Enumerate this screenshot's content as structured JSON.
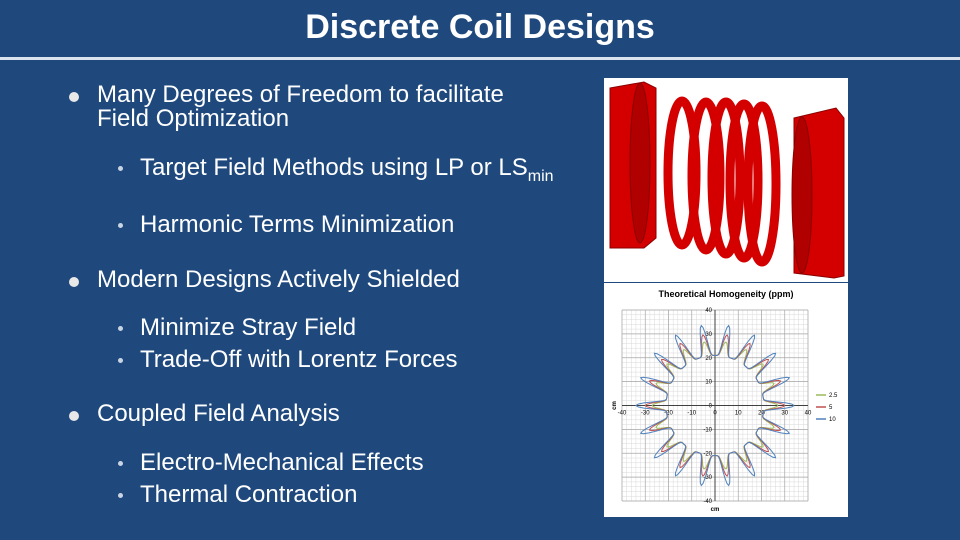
{
  "slide": {
    "title": "Discrete Coil Designs",
    "bullets": [
      {
        "text": "Many Degrees of Freedom to facilitate Field Optimization",
        "sub": [
          {
            "text": "Target Field Methods using LP or LS",
            "subscript": "min"
          },
          {
            "text": "Harmonic Terms Minimization"
          }
        ]
      },
      {
        "text": "Modern Designs Actively Shielded",
        "sub": [
          {
            "text": "Minimize Stray Field"
          },
          {
            "text": "Trade-Off with Lorentz Forces"
          }
        ]
      },
      {
        "text": "Coupled Field Analysis",
        "sub": [
          {
            "text": "Electro-Mechanical Effects"
          },
          {
            "text": "Thermal Contraction"
          }
        ]
      }
    ]
  },
  "figure": {
    "title": "Theoretical Homogeneity (ppm)",
    "xlabel": "cm",
    "ylabel": "cm",
    "xlim": [
      -40,
      40
    ],
    "ylim": [
      -40,
      40
    ],
    "xticks": [
      -40,
      -30,
      -20,
      -10,
      0,
      10,
      20,
      30,
      40
    ],
    "yticks": [
      -40,
      -30,
      -20,
      -10,
      0,
      10,
      20,
      30,
      40
    ],
    "series": [
      {
        "name": "2.5",
        "color": "#9bbb59"
      },
      {
        "name": "5",
        "color": "#c0504d"
      },
      {
        "name": "10",
        "color": "#4f81bd"
      }
    ]
  }
}
